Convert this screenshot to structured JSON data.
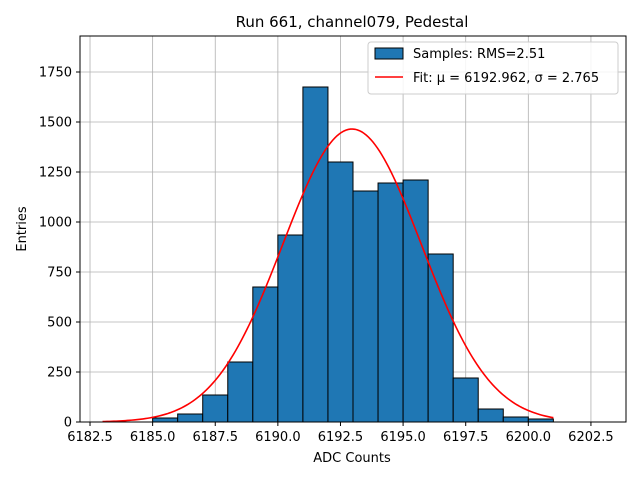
{
  "chart_data": {
    "type": "bar",
    "title": "Run 661, channel079, Pedestal",
    "xlabel": "ADC Counts",
    "ylabel": "Entries",
    "xlim": [
      6182.1,
      6203.9
    ],
    "ylim": [
      0,
      1930
    ],
    "x_ticks": [
      6182.5,
      6185.0,
      6187.5,
      6190.0,
      6192.5,
      6195.0,
      6197.5,
      6200.0,
      6202.5
    ],
    "x_tick_labels": [
      "6182.5",
      "6185.0",
      "6187.5",
      "6190.0",
      "6192.5",
      "6195.0",
      "6197.5",
      "6200.0",
      "6202.5"
    ],
    "y_ticks": [
      0,
      250,
      500,
      750,
      1000,
      1250,
      1500,
      1750
    ],
    "y_tick_labels": [
      "0",
      "250",
      "500",
      "750",
      "1000",
      "1250",
      "1500",
      "1750"
    ],
    "grid": true,
    "legend_position": "top-right",
    "bins": {
      "edges": [
        6185,
        6186,
        6187,
        6188,
        6189,
        6190,
        6191,
        6192,
        6193,
        6194,
        6195,
        6196,
        6197,
        6198,
        6199,
        6200,
        6201
      ],
      "counts": [
        20,
        40,
        135,
        300,
        675,
        935,
        1675,
        1300,
        1155,
        1195,
        1210,
        840,
        220,
        65,
        25,
        15
      ],
      "color": "#1f77b4",
      "edgecolor": "#000000"
    },
    "fit": {
      "mu": 6192.962,
      "sigma": 2.765,
      "amplitude": 1465,
      "x_range": [
        6183,
        6201
      ],
      "color": "#ff0000"
    },
    "legend": [
      {
        "type": "patch",
        "label": "Samples: RMS=2.51"
      },
      {
        "type": "line",
        "label": "Fit: μ = 6192.962, σ = 2.765"
      }
    ]
  }
}
